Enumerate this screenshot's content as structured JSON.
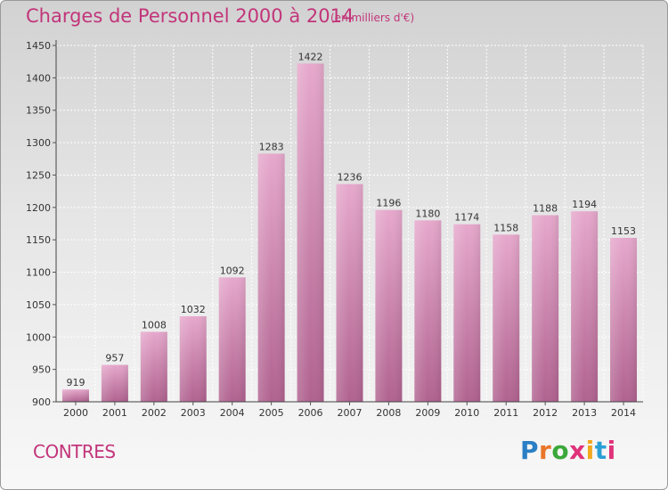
{
  "header": {
    "title": "Charges de Personnel 2000 à 2014",
    "subtitle": "(en milliers d'€)"
  },
  "footer": {
    "commune": "CONTRES",
    "logo_letters": [
      "P",
      "r",
      "o",
      "x",
      "i",
      "t",
      "i"
    ]
  },
  "colors": {
    "bar_top": "#e6a8cc",
    "bar_bottom": "#b0628f",
    "accent": "#c2357a"
  },
  "chart_data": {
    "type": "bar",
    "title": "Charges de Personnel 2000 à 2014",
    "subtitle": "(en milliers d'€)",
    "categories": [
      "2000",
      "2001",
      "2002",
      "2003",
      "2004",
      "2005",
      "2006",
      "2007",
      "2008",
      "2009",
      "2010",
      "2011",
      "2012",
      "2013",
      "2014"
    ],
    "values": [
      919,
      957,
      1008,
      1032,
      1092,
      1283,
      1422,
      1236,
      1196,
      1180,
      1174,
      1158,
      1188,
      1194,
      1153
    ],
    "ylim": [
      900,
      1450
    ],
    "yticks": [
      900,
      950,
      1000,
      1050,
      1100,
      1150,
      1200,
      1250,
      1300,
      1350,
      1400,
      1450
    ],
    "grid": true,
    "xlabel": "",
    "ylabel": ""
  }
}
